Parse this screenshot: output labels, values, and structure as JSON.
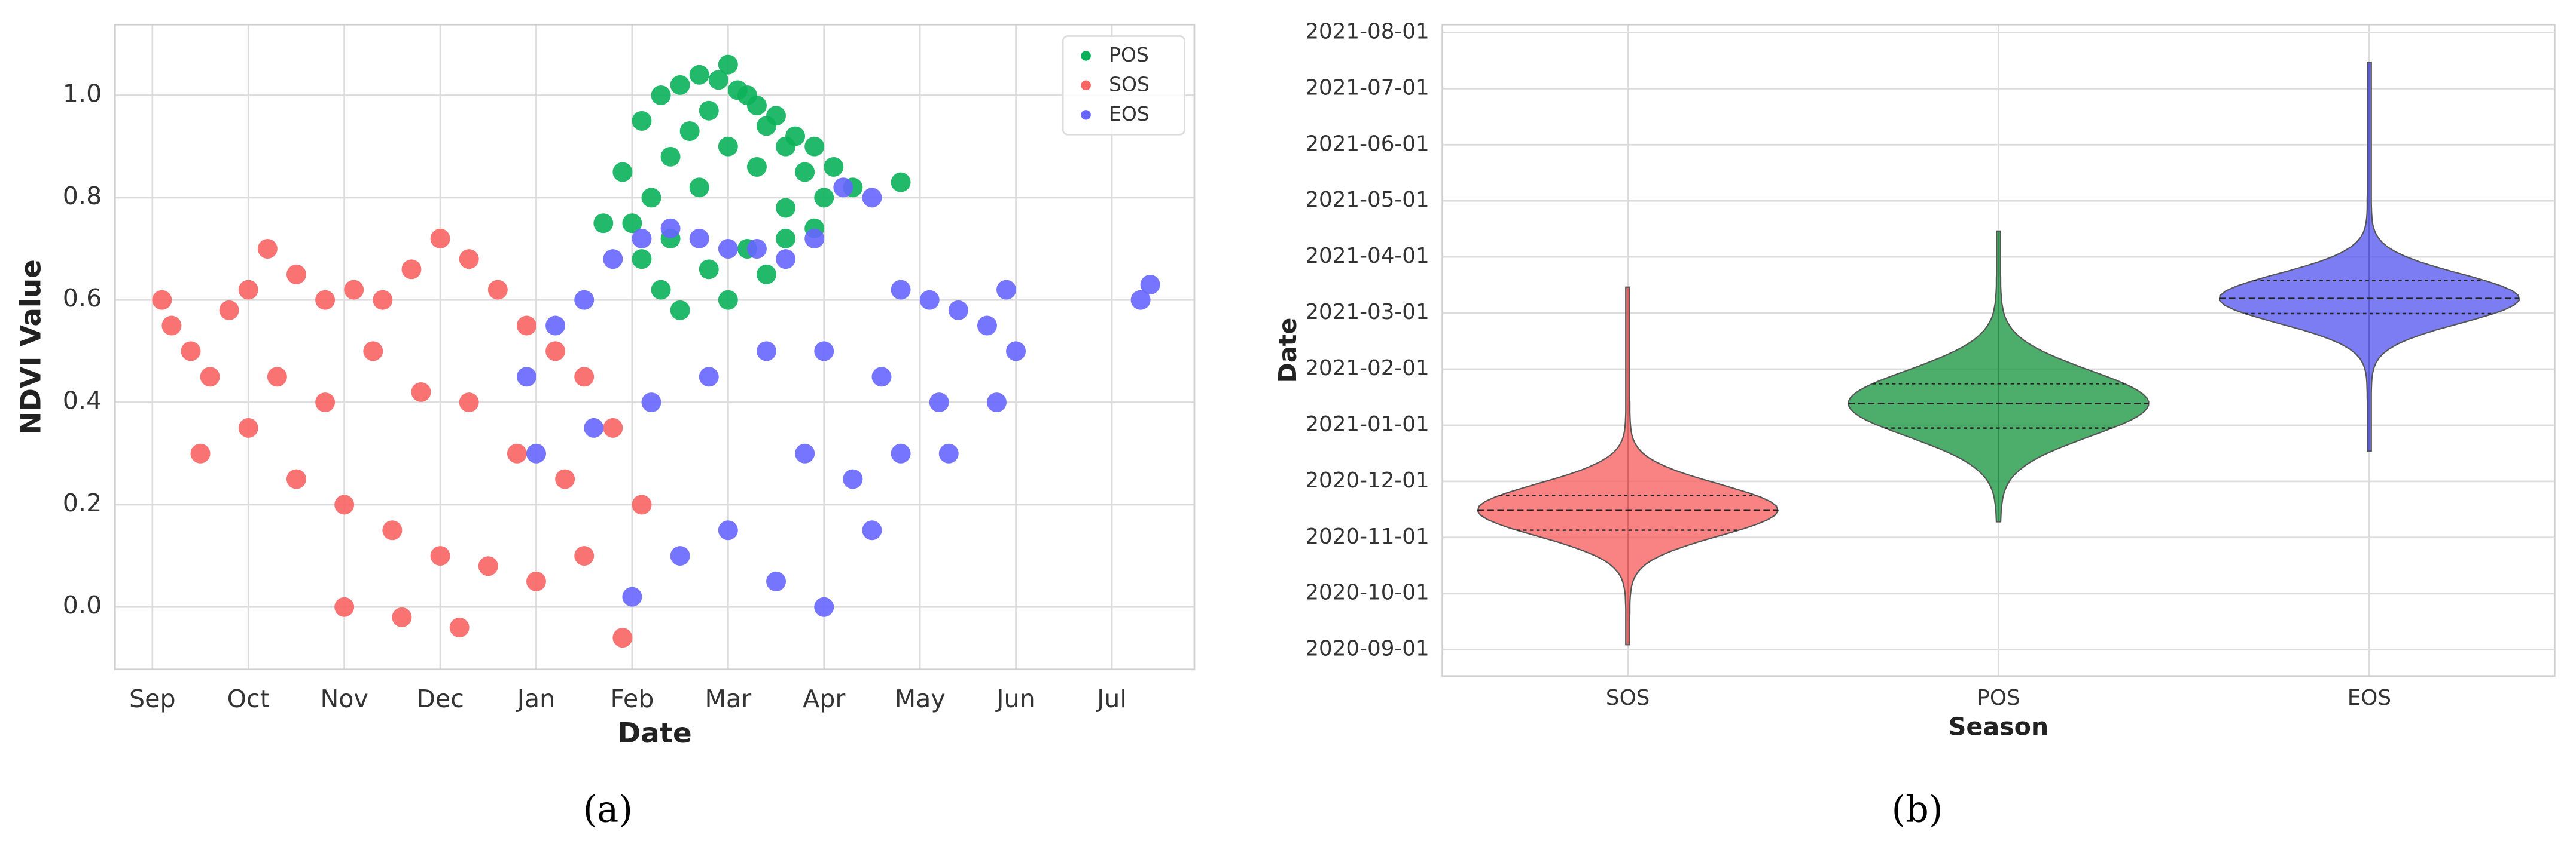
{
  "chart_data": [
    {
      "type": "scatter",
      "caption": "(a)",
      "xlabel": "Date",
      "ylabel": "NDVI Value",
      "xlim": [
        -0.39,
        10.86
      ],
      "ylim": [
        -0.122,
        1.138
      ],
      "xticks": [
        {
          "value": 0,
          "label": "Sep"
        },
        {
          "value": 1,
          "label": "Oct"
        },
        {
          "value": 2,
          "label": "Nov"
        },
        {
          "value": 3,
          "label": "Dec"
        },
        {
          "value": 4,
          "label": "Jan"
        },
        {
          "value": 5,
          "label": "Feb"
        },
        {
          "value": 6,
          "label": "Mar"
        },
        {
          "value": 7,
          "label": "Apr"
        },
        {
          "value": 8,
          "label": "May"
        },
        {
          "value": 9,
          "label": "Jun"
        },
        {
          "value": 10,
          "label": "Jul"
        }
      ],
      "yticks": [
        {
          "value": 0,
          "label": "0.0"
        },
        0.2,
        0.4,
        0.6,
        0.8,
        {
          "value": 1,
          "label": "1.0"
        }
      ],
      "grid": true,
      "legend": "upper right",
      "series": [
        {
          "name": "POS",
          "color": "#0bb15a",
          "x": [
            4.9,
            5.1,
            5.3,
            5.5,
            5.7,
            5.9,
            6.1,
            6.3,
            6.5,
            6.7,
            6.9,
            7.1,
            5.0,
            5.2,
            5.4,
            5.6,
            5.8,
            6.0,
            6.2,
            6.4,
            6.6,
            6.8,
            7.0,
            5.1,
            5.4,
            5.7,
            6.0,
            6.3,
            6.6,
            6.9,
            5.3,
            5.8,
            6.2,
            6.6,
            4.7,
            7.3,
            7.8,
            5.5,
            6.0,
            6.4
          ],
          "values": [
            0.85,
            0.95,
            1.0,
            1.02,
            1.04,
            1.03,
            1.01,
            0.98,
            0.96,
            0.92,
            0.9,
            0.86,
            0.75,
            0.8,
            0.88,
            0.93,
            0.97,
            1.06,
            1.0,
            0.94,
            0.9,
            0.85,
            0.8,
            0.68,
            0.72,
            0.82,
            0.9,
            0.86,
            0.78,
            0.74,
            0.62,
            0.66,
            0.7,
            0.72,
            0.75,
            0.82,
            0.83,
            0.58,
            0.6,
            0.65
          ]
        },
        {
          "name": "SOS",
          "color": "#f86464",
          "x": [
            0.1,
            0.2,
            0.4,
            0.6,
            0.8,
            1.0,
            1.2,
            1.5,
            1.8,
            2.1,
            2.4,
            2.7,
            3.0,
            3.3,
            3.6,
            3.9,
            4.2,
            4.5,
            4.8,
            5.1,
            0.5,
            1.0,
            1.5,
            2.0,
            2.5,
            3.0,
            3.5,
            4.0,
            4.5,
            1.3,
            1.8,
            2.3,
            2.8,
            3.3,
            3.8,
            4.3,
            2.0,
            2.6,
            3.2,
            4.9
          ],
          "values": [
            0.6,
            0.55,
            0.5,
            0.45,
            0.58,
            0.62,
            0.7,
            0.65,
            0.6,
            0.62,
            0.6,
            0.66,
            0.72,
            0.68,
            0.62,
            0.55,
            0.5,
            0.45,
            0.35,
            0.2,
            0.3,
            0.35,
            0.25,
            0.2,
            0.15,
            0.1,
            0.08,
            0.05,
            0.1,
            0.45,
            0.4,
            0.5,
            0.42,
            0.4,
            0.3,
            0.25,
            0.0,
            -0.02,
            -0.04,
            -0.06
          ]
        },
        {
          "name": "EOS",
          "color": "#6666ff",
          "x": [
            3.9,
            4.2,
            4.5,
            4.8,
            5.1,
            5.4,
            5.7,
            6.0,
            6.3,
            6.6,
            6.9,
            7.2,
            7.5,
            7.8,
            8.1,
            8.4,
            8.7,
            9.0,
            4.0,
            4.6,
            5.2,
            5.8,
            6.4,
            7.0,
            7.6,
            8.2,
            8.8,
            5.0,
            5.5,
            6.0,
            6.5,
            7.0,
            7.5,
            6.8,
            7.3,
            7.8,
            8.3,
            8.9,
            10.3,
            10.4
          ],
          "values": [
            0.45,
            0.55,
            0.6,
            0.68,
            0.72,
            0.74,
            0.72,
            0.7,
            0.7,
            0.68,
            0.72,
            0.82,
            0.8,
            0.62,
            0.6,
            0.58,
            0.55,
            0.5,
            0.3,
            0.35,
            0.4,
            0.45,
            0.5,
            0.5,
            0.45,
            0.4,
            0.4,
            0.02,
            0.1,
            0.15,
            0.05,
            0.0,
            0.15,
            0.3,
            0.25,
            0.3,
            0.3,
            0.62,
            0.6,
            0.63
          ]
        }
      ]
    },
    {
      "type": "violin",
      "caption": "(b)",
      "xlabel": "Season",
      "ylabel": "Date",
      "categories": [
        "SOS",
        "POS",
        "EOS"
      ],
      "ylim": [
        -0.47,
        11.14
      ],
      "yticks": [
        {
          "value": 0,
          "label": "2020-09-01"
        },
        {
          "value": 1,
          "label": "2020-10-01"
        },
        {
          "value": 2,
          "label": "2020-11-01"
        },
        {
          "value": 3,
          "label": "2020-12-01"
        },
        {
          "value": 4,
          "label": "2021-01-01"
        },
        {
          "value": 5,
          "label": "2021-02-01"
        },
        {
          "value": 6,
          "label": "2021-03-01"
        },
        {
          "value": 7,
          "label": "2021-04-01"
        },
        {
          "value": 8,
          "label": "2021-05-01"
        },
        {
          "value": 9,
          "label": "2021-06-01"
        },
        {
          "value": 10,
          "label": "2021-07-01"
        },
        {
          "value": 11,
          "label": "2021-08-01"
        }
      ],
      "grid": true,
      "violins": [
        {
          "color": "#f86464",
          "min": 0.09,
          "q1": 2.13,
          "median": 2.49,
          "q3": 2.75,
          "max": 6.46
        },
        {
          "color": "#1f9a45",
          "min": 2.28,
          "q1": 3.95,
          "median": 4.39,
          "q3": 4.74,
          "max": 7.46
        },
        {
          "color": "#5c5cf0",
          "min": 3.54,
          "q1": 5.99,
          "median": 6.26,
          "q3": 6.58,
          "max": 10.47
        }
      ]
    }
  ]
}
